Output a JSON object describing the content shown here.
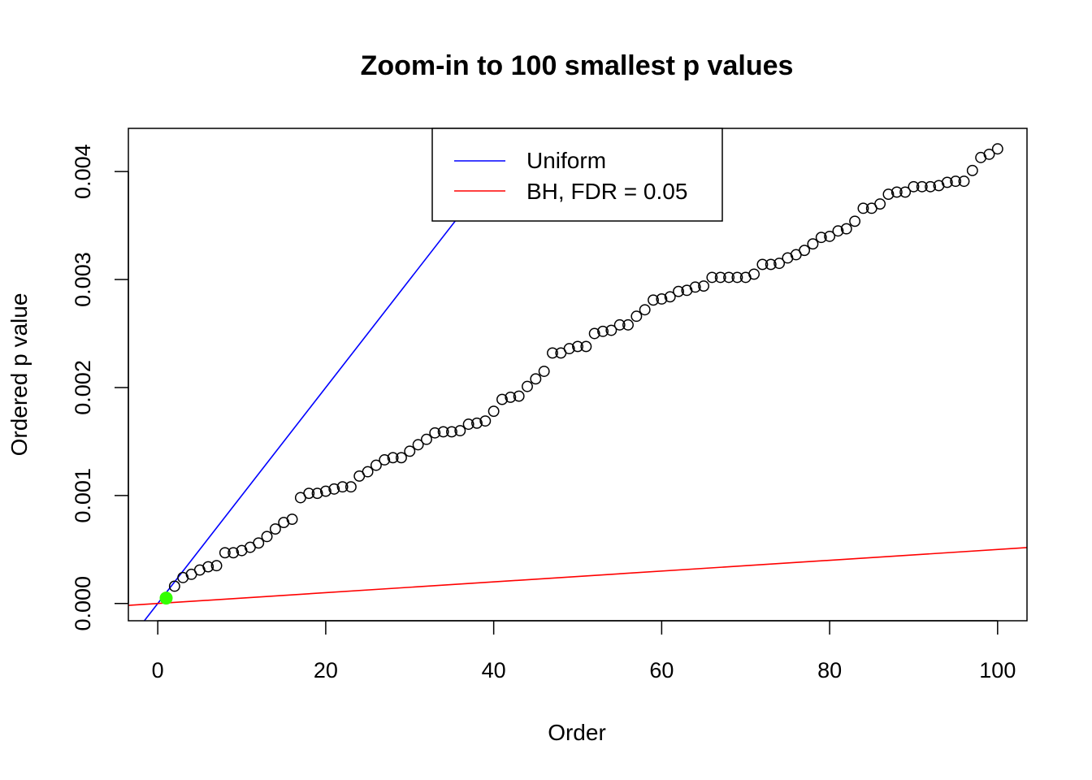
{
  "chart_data": {
    "type": "scatter",
    "title": "Zoom-in to 100 smallest p values",
    "xlabel": "Order",
    "ylabel": "Ordered p value",
    "xlim": [
      -3.5,
      103.5
    ],
    "ylim": [
      -0.00016,
      0.0044
    ],
    "x_ticks": [
      {
        "value": 0,
        "label": "0"
      },
      {
        "value": 20,
        "label": "20"
      },
      {
        "value": 40,
        "label": "40"
      },
      {
        "value": 60,
        "label": "60"
      },
      {
        "value": 80,
        "label": "80"
      },
      {
        "value": 100,
        "label": "100"
      }
    ],
    "y_ticks": [
      {
        "value": 0,
        "label": "0.000"
      },
      {
        "value": 0.001,
        "label": "0.001"
      },
      {
        "value": 0.002,
        "label": "0.002"
      },
      {
        "value": 0.003,
        "label": "0.003"
      },
      {
        "value": 0.004,
        "label": "0.004"
      }
    ],
    "grid": false,
    "series": [
      {
        "kind": "points",
        "color": "#000000",
        "x": [
          1,
          2,
          3,
          4,
          5,
          6,
          7,
          8,
          9,
          10,
          11,
          12,
          13,
          14,
          15,
          16,
          17,
          18,
          19,
          20,
          21,
          22,
          23,
          24,
          25,
          26,
          27,
          28,
          29,
          30,
          31,
          32,
          33,
          34,
          35,
          36,
          37,
          38,
          39,
          40,
          41,
          42,
          43,
          44,
          45,
          46,
          47,
          48,
          49,
          50,
          51,
          52,
          53,
          54,
          55,
          56,
          57,
          58,
          59,
          60,
          61,
          62,
          63,
          64,
          65,
          66,
          67,
          68,
          69,
          70,
          71,
          72,
          73,
          74,
          75,
          76,
          77,
          78,
          79,
          80,
          81,
          82,
          83,
          84,
          85,
          86,
          87,
          88,
          89,
          90,
          91,
          92,
          93,
          94,
          95,
          96,
          97,
          98,
          99,
          100
        ],
        "y": [
          5e-05,
          0.00016,
          0.00024,
          0.00027,
          0.00031,
          0.00034,
          0.00035,
          0.00047,
          0.00047,
          0.00049,
          0.00052,
          0.00056,
          0.00062,
          0.00069,
          0.00075,
          0.00078,
          0.00098,
          0.00102,
          0.00102,
          0.00104,
          0.00106,
          0.00108,
          0.00108,
          0.00118,
          0.00122,
          0.00128,
          0.00133,
          0.00135,
          0.00135,
          0.00141,
          0.00147,
          0.00152,
          0.00158,
          0.00159,
          0.00159,
          0.0016,
          0.00166,
          0.00167,
          0.00169,
          0.00178,
          0.00189,
          0.00191,
          0.00192,
          0.00201,
          0.00208,
          0.00215,
          0.00232,
          0.00232,
          0.00236,
          0.00238,
          0.00238,
          0.0025,
          0.00252,
          0.00253,
          0.00258,
          0.00258,
          0.00266,
          0.00272,
          0.00281,
          0.00282,
          0.00284,
          0.00289,
          0.0029,
          0.00293,
          0.00294,
          0.00302,
          0.00302,
          0.00302,
          0.00302,
          0.00302,
          0.00305,
          0.00314,
          0.00314,
          0.00315,
          0.0032,
          0.00323,
          0.00327,
          0.00333,
          0.00339,
          0.0034,
          0.00345,
          0.00347,
          0.00354,
          0.00366,
          0.00366,
          0.0037,
          0.00379,
          0.00381,
          0.00381,
          0.00386,
          0.00386,
          0.00386,
          0.00387,
          0.0039,
          0.00391,
          0.00391,
          0.00401,
          0.00413,
          0.00416,
          0.00421
        ]
      },
      {
        "kind": "highlight",
        "color": "#33ff00",
        "x": [
          1
        ],
        "y": [
          5e-05
        ]
      },
      {
        "kind": "line",
        "name": "Uniform",
        "color": "#0000ff",
        "intercept": 0,
        "slope": 0.0001
      },
      {
        "kind": "line",
        "name": "BH, FDR = 0.05",
        "color": "#ff0000",
        "intercept": 0,
        "slope": 5e-06
      }
    ],
    "legend": {
      "position": "top",
      "entries": [
        {
          "label": "Uniform",
          "color": "#0000ff"
        },
        {
          "label": "BH, FDR = 0.05",
          "color": "#ff0000"
        }
      ]
    }
  }
}
